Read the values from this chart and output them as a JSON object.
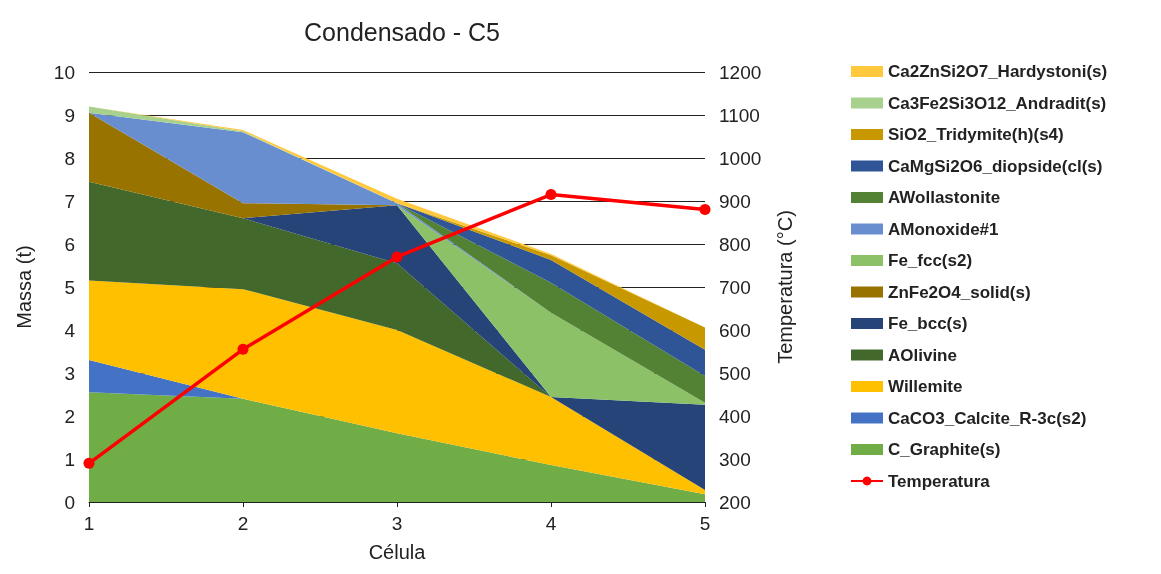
{
  "chart_data": {
    "type": "area",
    "stacked": true,
    "title": "Condensado - C5",
    "xlabel": "Célula",
    "ylabel": "Massa (t)",
    "y2label": "Temperatura (°C)",
    "categories": [
      "1",
      "2",
      "3",
      "4",
      "5"
    ],
    "ylim": [
      0,
      10
    ],
    "yticks": [
      0,
      1,
      2,
      3,
      4,
      5,
      6,
      7,
      8,
      9,
      10
    ],
    "y2lim": [
      200,
      1200
    ],
    "y2ticks": [
      200,
      300,
      400,
      500,
      600,
      700,
      800,
      900,
      1000,
      1100,
      1200
    ],
    "grid": "y",
    "legend": "right",
    "series": [
      {
        "name": "C_Graphite(s)",
        "color": "#70ad47",
        "values": [
          2.55,
          2.4,
          1.6,
          0.86,
          0.18
        ]
      },
      {
        "name": "CaCO3_Calcite_R-3c(s2)",
        "color": "#4472c4",
        "values": [
          0.75,
          0,
          null,
          null,
          null
        ]
      },
      {
        "name": "Willemite",
        "color": "#ffc000",
        "values": [
          1.85,
          2.55,
          2.4,
          1.58,
          0.1
        ]
      },
      {
        "name": "AOlivine",
        "color": "#43682b",
        "values": [
          2.3,
          1.65,
          1.55,
          0,
          null
        ]
      },
      {
        "name": "Fe_bcc(s)",
        "color": "#264478",
        "values": [
          null,
          0,
          1.35,
          0,
          1.98
        ]
      },
      {
        "name": "ZnFe2O4_solid(s)",
        "color": "#997300",
        "values": [
          1.6,
          0.35,
          0,
          null,
          null
        ]
      },
      {
        "name": "Fe_fcc(s2)",
        "color": "#8cc168",
        "values": [
          null,
          null,
          0,
          1.96,
          0.05
        ]
      },
      {
        "name": "AMonoxide#1",
        "color": "#698ed0",
        "values": [
          0,
          1.65,
          0.05,
          0,
          null
        ]
      },
      {
        "name": "AWollastonite",
        "color": "#548235",
        "values": [
          null,
          null,
          0,
          0.7,
          0.62
        ]
      },
      {
        "name": "CaMgSi2O6_diopside(cl(s)",
        "color": "#2f5597",
        "values": [
          null,
          null,
          0,
          0.53,
          0.61
        ]
      },
      {
        "name": "SiO2_Tridymite(h)(s4)",
        "color": "#c89800",
        "values": [
          null,
          null,
          0,
          0.11,
          0.52
        ]
      },
      {
        "name": "Ca3Fe2Si3O12_Andradit(s)",
        "color": "#a9d18e",
        "values": [
          0.15,
          0.02,
          0,
          null,
          null
        ]
      },
      {
        "name": "Ca2ZnSi2O7_Hardystoni(s)",
        "color": "#ffc83d",
        "values": [
          0,
          0.03,
          0.1,
          0.03,
          0
        ]
      },
      {
        "name": "Temperatura",
        "type": "line",
        "axis": "y2",
        "color": "#ff0000",
        "marker": "circle",
        "values": [
          290,
          555,
          770,
          915,
          880
        ]
      }
    ]
  }
}
